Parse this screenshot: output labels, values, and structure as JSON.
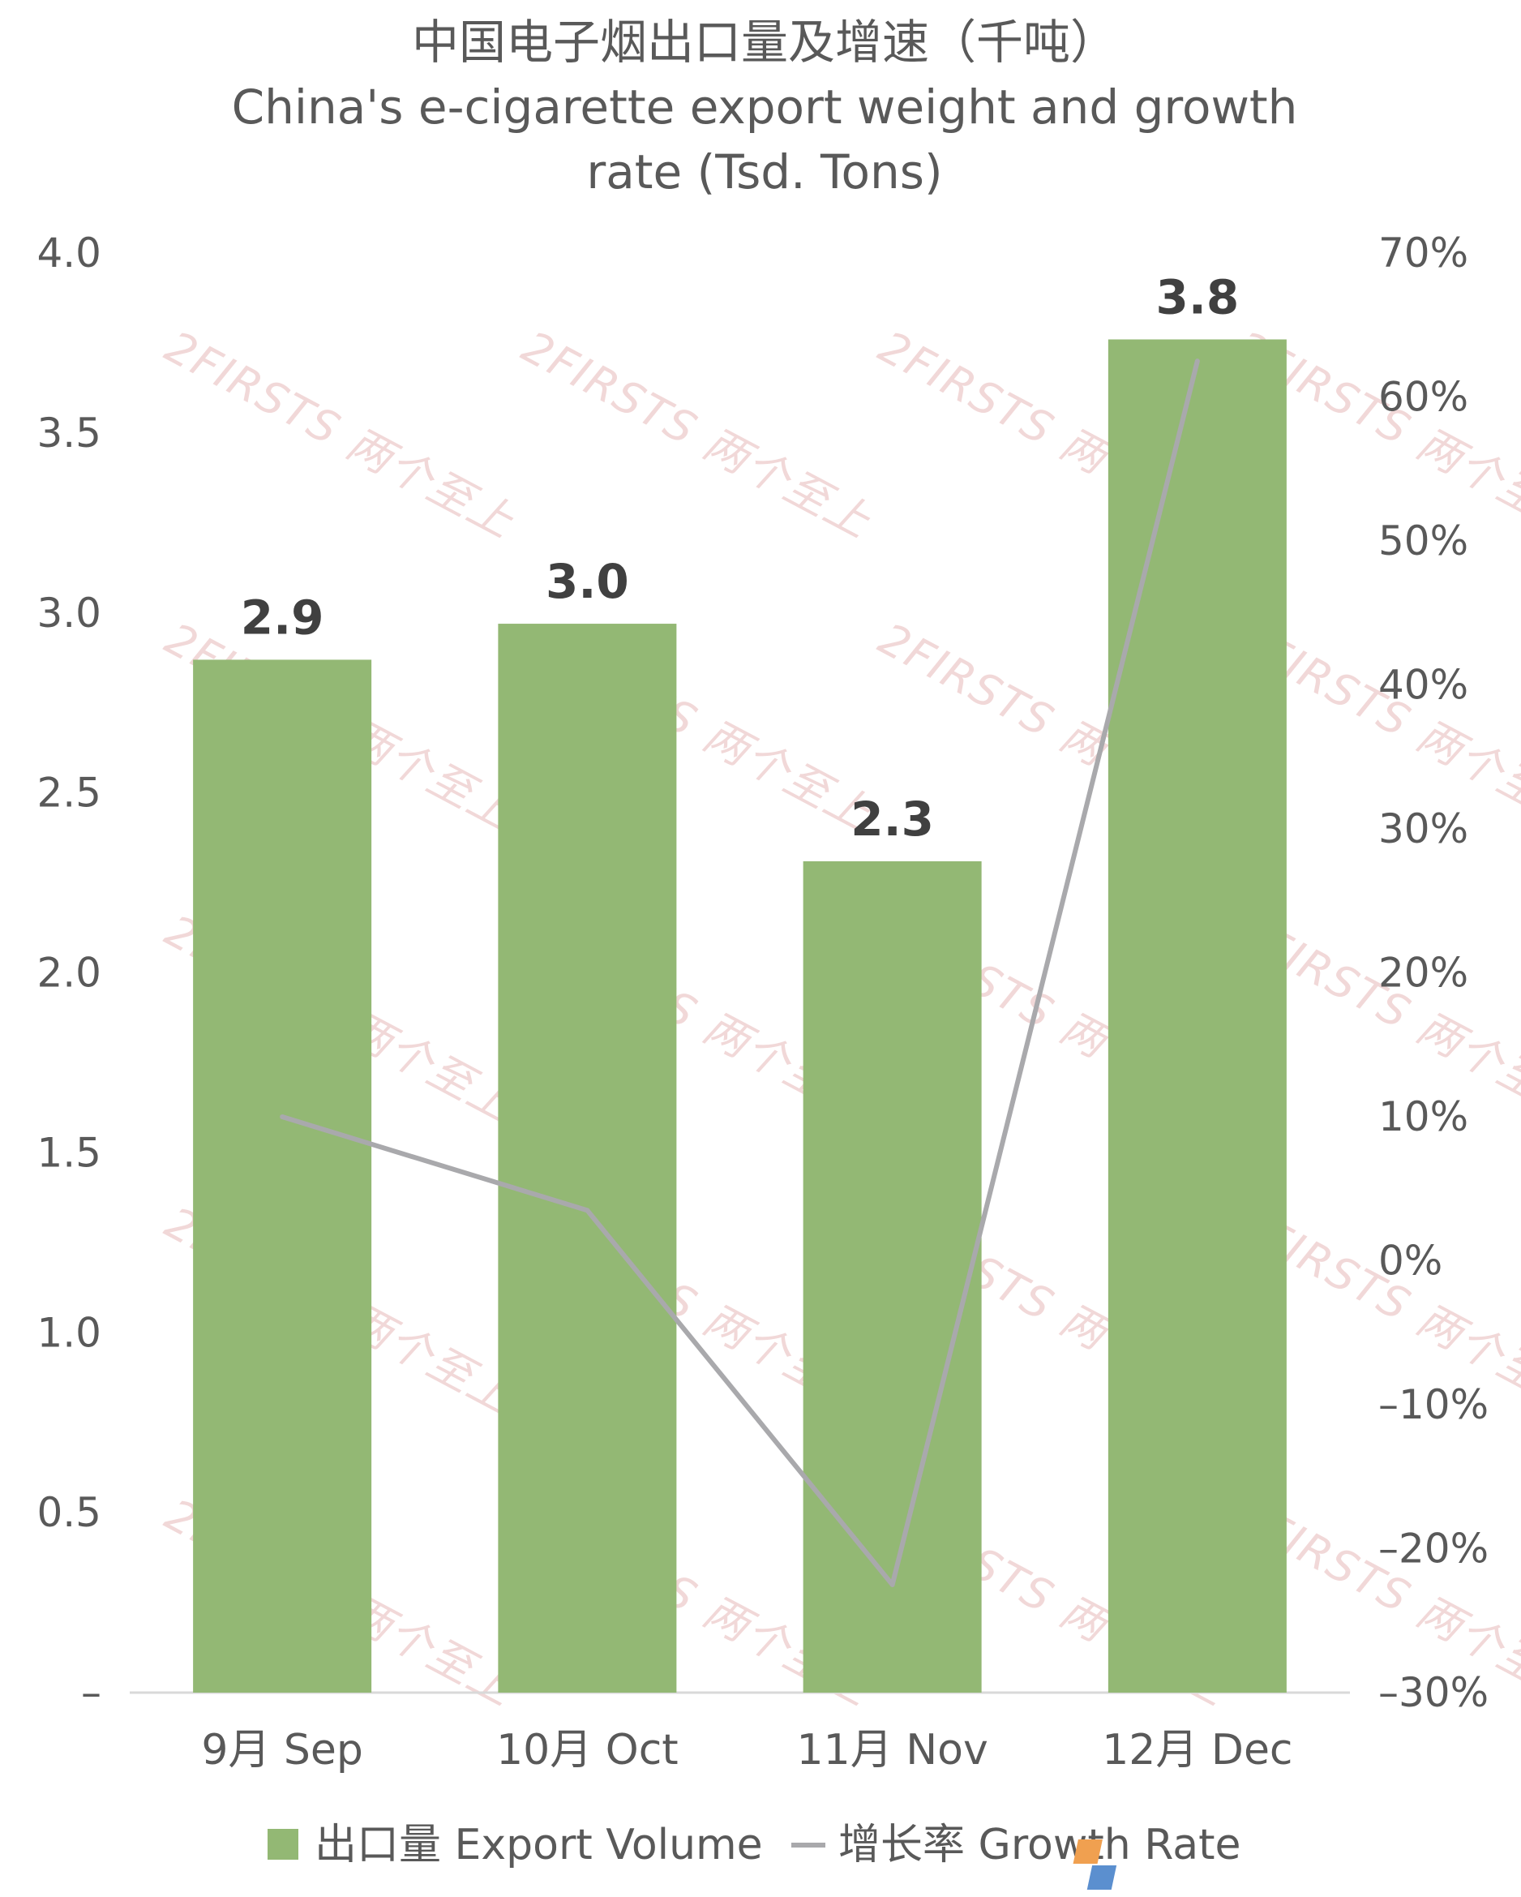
{
  "chart_data": {
    "type": "bar",
    "title": "中国电子烟出口量及增速（千吨）",
    "subtitle_lines": [
      "China's e-cigarette export weight and growth",
      "rate (Tsd. Tons)"
    ],
    "categories": [
      "9月 Sep",
      "10月 Oct",
      "11月 Nov",
      "12月 Dec"
    ],
    "series": [
      {
        "name": "出口量 Export Volume",
        "type": "bar",
        "axis": "left",
        "values": [
          2.87,
          2.97,
          2.31,
          3.76
        ],
        "data_labels": [
          "2.9",
          "3.0",
          "2.3",
          "3.8"
        ],
        "color": "#93b874"
      },
      {
        "name": "增长率 Growth Rate",
        "type": "line",
        "axis": "right",
        "values": [
          10.0,
          3.5,
          -22.5,
          62.5
        ],
        "color": "#a9a9ac"
      }
    ],
    "left_axis": {
      "ylim": [
        0,
        4.0
      ],
      "tick_labels": [
        "–",
        "0.5",
        "1.0",
        "1.5",
        "2.0",
        "2.5",
        "3.0",
        "3.5",
        "4.0"
      ]
    },
    "right_axis": {
      "ylim": [
        -30,
        70
      ],
      "tick_labels": [
        "–30%",
        "–20%",
        "–10%",
        "0%",
        "10%",
        "20%",
        "30%",
        "40%",
        "50%",
        "60%",
        "70%"
      ]
    },
    "grid": false,
    "legend_position": "bottom",
    "watermark": "2FIRSTS 两个至上"
  }
}
